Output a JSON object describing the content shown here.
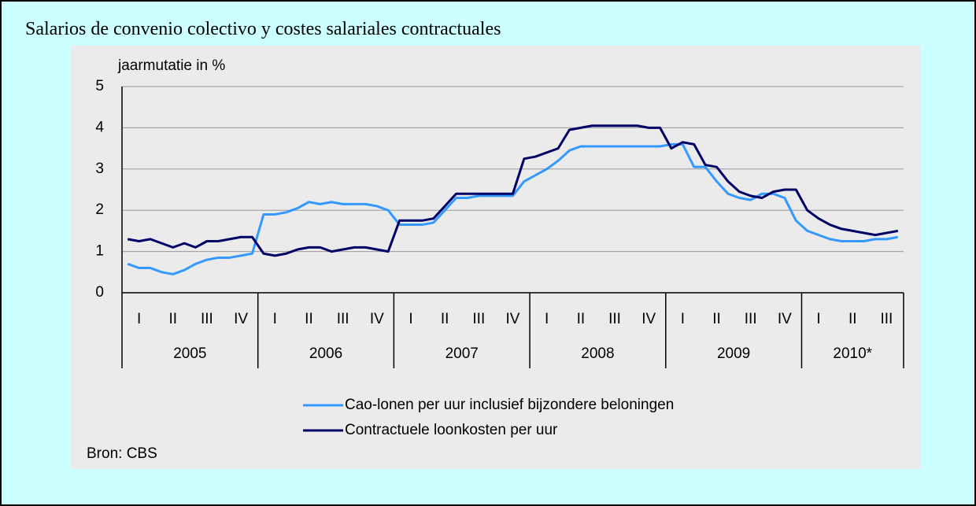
{
  "title": "Salarios de convenio colectivo y costes salariales contractuales",
  "chart_data": {
    "type": "line",
    "y_label": "jaarmutatie in %",
    "years": [
      {
        "label": "2005",
        "quarters": [
          "I",
          "II",
          "III",
          "IV"
        ]
      },
      {
        "label": "2006",
        "quarters": [
          "I",
          "II",
          "III",
          "IV"
        ]
      },
      {
        "label": "2007",
        "quarters": [
          "I",
          "II",
          "III",
          "IV"
        ]
      },
      {
        "label": "2008",
        "quarters": [
          "I",
          "II",
          "III",
          "IV"
        ]
      },
      {
        "label": "2009",
        "quarters": [
          "I",
          "II",
          "III",
          "IV"
        ]
      },
      {
        "label": "2010*",
        "quarters": [
          "I",
          "II",
          "III"
        ]
      }
    ],
    "ylim": [
      0,
      5
    ],
    "yticks": [
      0,
      1,
      2,
      3,
      4,
      5
    ],
    "grid": true,
    "series": [
      {
        "name": "Cao-lonen per uur inclusief bijzondere beloningen",
        "color": "#3399ff",
        "values": [
          0.7,
          0.6,
          0.6,
          0.5,
          0.45,
          0.55,
          0.7,
          0.8,
          0.85,
          0.85,
          0.9,
          0.95,
          1.9,
          1.9,
          1.95,
          2.05,
          2.2,
          2.15,
          2.2,
          2.15,
          2.15,
          2.15,
          2.1,
          2.0,
          1.65,
          1.65,
          1.65,
          1.7,
          2.0,
          2.3,
          2.3,
          2.35,
          2.35,
          2.35,
          2.35,
          2.7,
          2.85,
          3.0,
          3.2,
          3.45,
          3.55,
          3.55,
          3.55,
          3.55,
          3.55,
          3.55,
          3.55,
          3.55,
          3.6,
          3.6,
          3.05,
          3.05,
          2.7,
          2.4,
          2.3,
          2.25,
          2.4,
          2.4,
          2.3,
          1.75,
          1.5,
          1.4,
          1.3,
          1.25,
          1.25,
          1.25,
          1.3,
          1.3,
          1.35
        ]
      },
      {
        "name": "Contractuele loonkosten per uur",
        "color": "#000066",
        "values": [
          1.3,
          1.25,
          1.3,
          1.2,
          1.1,
          1.2,
          1.1,
          1.25,
          1.25,
          1.3,
          1.35,
          1.35,
          0.95,
          0.9,
          0.95,
          1.05,
          1.1,
          1.1,
          1.0,
          1.05,
          1.1,
          1.1,
          1.05,
          1.0,
          1.75,
          1.75,
          1.75,
          1.8,
          2.1,
          2.4,
          2.4,
          2.4,
          2.4,
          2.4,
          2.4,
          3.25,
          3.3,
          3.4,
          3.5,
          3.95,
          4.0,
          4.05,
          4.05,
          4.05,
          4.05,
          4.05,
          4.0,
          4.0,
          3.5,
          3.65,
          3.6,
          3.1,
          3.05,
          2.7,
          2.45,
          2.35,
          2.3,
          2.45,
          2.5,
          2.5,
          2.0,
          1.8,
          1.65,
          1.55,
          1.5,
          1.45,
          1.4,
          1.45,
          1.5
        ]
      }
    ],
    "source": "Bron: CBS"
  }
}
